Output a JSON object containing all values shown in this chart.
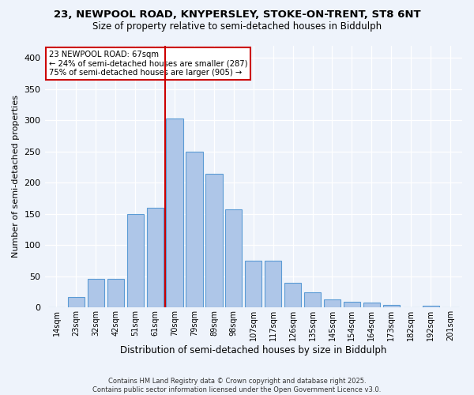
{
  "title_line1": "23, NEWPOOL ROAD, KNYPERSLEY, STOKE-ON-TRENT, ST8 6NT",
  "title_line2": "Size of property relative to semi-detached houses in Biddulph",
  "xlabel": "Distribution of semi-detached houses by size in Biddulph",
  "ylabel": "Number of semi-detached properties",
  "categories": [
    "14sqm",
    "23sqm",
    "32sqm",
    "42sqm",
    "51sqm",
    "61sqm",
    "70sqm",
    "79sqm",
    "89sqm",
    "98sqm",
    "107sqm",
    "117sqm",
    "126sqm",
    "135sqm",
    "145sqm",
    "154sqm",
    "164sqm",
    "173sqm",
    "182sqm",
    "192sqm",
    "201sqm"
  ],
  "values": [
    0,
    17,
    46,
    46,
    150,
    160,
    303,
    250,
    215,
    158,
    75,
    75,
    40,
    25,
    13,
    10,
    8,
    4,
    0,
    3,
    0
  ],
  "bar_color": "#aec6e8",
  "bar_edge_color": "#5b9bd5",
  "vline_x": 6,
  "vline_color": "#cc0000",
  "annotation_title": "23 NEWPOOL ROAD: 67sqm",
  "annotation_line1": "← 24% of semi-detached houses are smaller (287)",
  "annotation_line2": "75% of semi-detached houses are larger (905) →",
  "annotation_box_color": "#cc0000",
  "footer_line1": "Contains HM Land Registry data © Crown copyright and database right 2025.",
  "footer_line2": "Contains public sector information licensed under the Open Government Licence v3.0.",
  "bg_color": "#eef3fb",
  "ylim": [
    0,
    420
  ],
  "yticks": [
    0,
    50,
    100,
    150,
    200,
    250,
    300,
    350,
    400
  ]
}
